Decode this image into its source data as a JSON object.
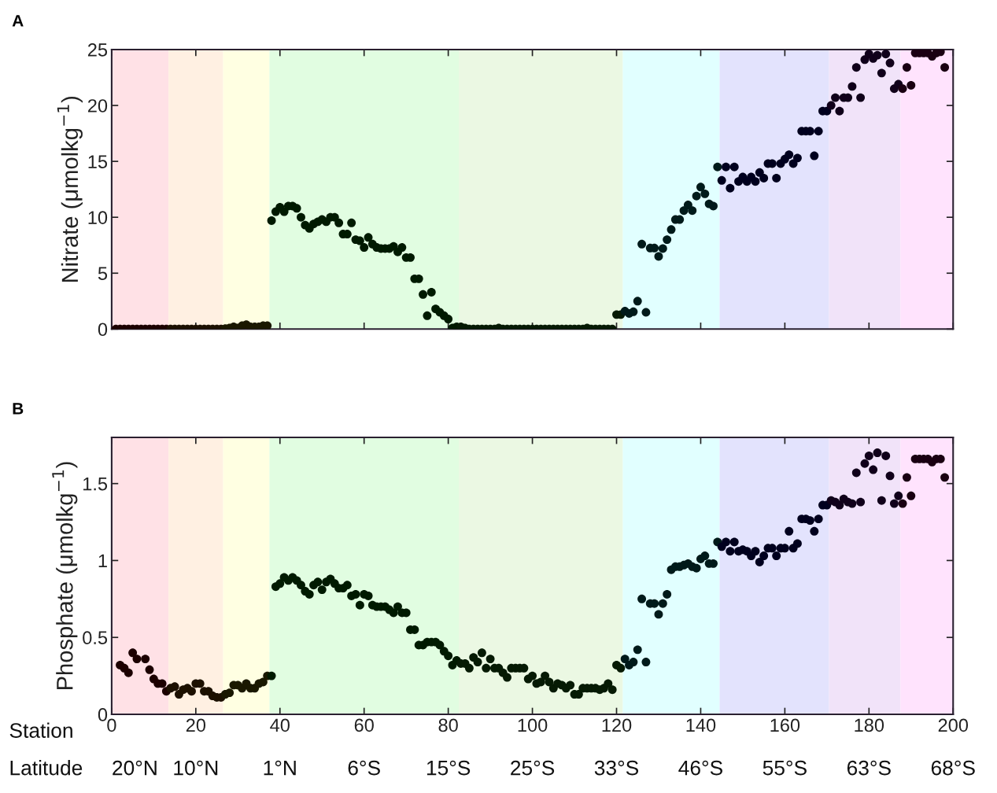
{
  "chart_data": [
    {
      "type": "scatter",
      "title": "A",
      "ylabel": "Nitrate (μmolkg$^{−1}$)",
      "xlim": [
        0,
        200
      ],
      "xticks": [
        0,
        20,
        40,
        60,
        80,
        100,
        120,
        140,
        160,
        180,
        200
      ],
      "ylim": [
        0,
        25
      ],
      "yticks": [
        0,
        5,
        10,
        15,
        20,
        25
      ],
      "tick_labels": "y",
      "grid": false,
      "legend": false,
      "marker": "circle",
      "bands": [
        {
          "axis": "x",
          "from": 0,
          "to": 13.5,
          "color": "#ffe1e6"
        },
        {
          "axis": "x",
          "from": 13.5,
          "to": 26.5,
          "color": "#fff0e2"
        },
        {
          "axis": "x",
          "from": 26.5,
          "to": 37.5,
          "color": "#ffffe2"
        },
        {
          "axis": "x",
          "from": 37.5,
          "to": 82.5,
          "color": "#e1fde1"
        },
        {
          "axis": "x",
          "from": 82.5,
          "to": 121.5,
          "color": "#ebf8e3"
        },
        {
          "axis": "x",
          "from": 121.5,
          "to": 144.5,
          "color": "#e1ffff"
        },
        {
          "axis": "x",
          "from": 144.5,
          "to": 170.5,
          "color": "#e3e3fd"
        },
        {
          "axis": "x",
          "from": 170.5,
          "to": 187.5,
          "color": "#f1e3f9"
        },
        {
          "axis": "x",
          "from": 187.5,
          "to": 200,
          "color": "#ffe3fd"
        }
      ],
      "series": [
        {
          "color": "#1c0000",
          "x": [
            1,
            2,
            3,
            4,
            5,
            6,
            7,
            8,
            9,
            10,
            11,
            12,
            13
          ],
          "values": [
            0,
            0,
            0,
            0,
            0,
            0,
            0,
            0,
            0,
            0,
            0,
            0,
            0
          ]
        },
        {
          "color": "#1c1000",
          "x": [
            14,
            15,
            16,
            17,
            18,
            19,
            20,
            21,
            22,
            23,
            24,
            25,
            26
          ],
          "values": [
            0,
            0,
            0,
            0,
            0,
            0,
            0,
            0,
            0,
            0,
            0,
            0,
            0
          ]
        },
        {
          "color": "#1a1800",
          "x": [
            27,
            28,
            29,
            30,
            31,
            32,
            33,
            34,
            35,
            36,
            37
          ],
          "values": [
            0.05,
            0.1,
            0.2,
            0.1,
            0.3,
            0.4,
            0.2,
            0.2,
            0.2,
            0.3,
            0.3
          ]
        },
        {
          "color": "#001a00",
          "x": [
            38,
            39,
            40,
            41,
            42,
            43,
            44,
            45,
            46,
            47,
            48,
            49,
            50,
            51,
            52,
            53,
            54,
            55,
            56,
            57,
            58,
            59,
            60,
            61,
            62,
            63,
            64,
            65,
            66,
            67,
            68,
            69,
            70,
            71,
            72,
            73,
            74,
            75,
            76,
            77,
            78,
            79,
            80,
            81,
            82
          ],
          "values": [
            9.7,
            10.5,
            10.9,
            10.5,
            11.0,
            11.0,
            10.8,
            10.0,
            9.3,
            9.0,
            9.4,
            9.6,
            9.8,
            9.6,
            10.0,
            10.0,
            9.5,
            8.5,
            8.5,
            9.5,
            8.0,
            7.9,
            7.3,
            8.2,
            7.6,
            7.3,
            7.2,
            7.2,
            7.2,
            7.4,
            6.9,
            7.3,
            6.4,
            6.4,
            4.5,
            4.5,
            3.1,
            1.2,
            3.3,
            1.8,
            1.5,
            1.2,
            0.9,
            0.1,
            0.2
          ]
        },
        {
          "color": "#061a04",
          "x": [
            83,
            84,
            85,
            86,
            87,
            88,
            89,
            90,
            91,
            92,
            93,
            94,
            95,
            96,
            97,
            98,
            99,
            100,
            101,
            102,
            103,
            104,
            105,
            106,
            107,
            108,
            109,
            110,
            111,
            112,
            113,
            114,
            115,
            116,
            117,
            118,
            119,
            120,
            121
          ],
          "values": [
            0.2,
            0.1,
            0,
            0,
            0,
            0,
            0,
            0,
            0,
            0.1,
            0,
            0,
            0,
            0,
            0,
            0,
            0,
            0,
            0,
            0,
            0,
            0,
            0,
            0,
            0,
            0,
            0,
            0,
            0,
            0,
            0.1,
            0,
            0,
            0,
            0,
            0,
            0,
            1.3,
            1.3
          ]
        },
        {
          "color": "#001a1a",
          "x": [
            122,
            123,
            124,
            125,
            126,
            127,
            128,
            129,
            130,
            131,
            132,
            133,
            134,
            135,
            136,
            137,
            138,
            139,
            140,
            141,
            142,
            143,
            144
          ],
          "values": [
            1.6,
            1.4,
            1.55,
            2.5,
            7.6,
            1.5,
            7.25,
            7.25,
            6.5,
            7.2,
            8.0,
            8.9,
            9.8,
            9.8,
            10.6,
            11.1,
            10.6,
            11.9,
            12.7,
            12.1,
            11.2,
            11.0,
            14.5
          ]
        },
        {
          "color": "#00001e",
          "x": [
            145,
            146,
            147,
            148,
            149,
            150,
            151,
            152,
            153,
            154,
            155,
            156,
            157,
            158,
            159,
            160,
            161,
            162,
            163,
            164,
            165,
            166,
            167,
            168,
            169,
            170
          ],
          "values": [
            13.3,
            14.5,
            12.6,
            14.5,
            13.2,
            13.6,
            13.2,
            13.6,
            13.2,
            14.0,
            13.5,
            14.8,
            14.8,
            13.5,
            14.8,
            15.2,
            15.6,
            14.8,
            15.3,
            17.7,
            17.7,
            17.7,
            15.5,
            17.7,
            19.5,
            19.5
          ]
        },
        {
          "color": "#10001a",
          "x": [
            171,
            172,
            173,
            174,
            175,
            176,
            177,
            178,
            179,
            180,
            181,
            182,
            183,
            184,
            185,
            186,
            187
          ],
          "values": [
            20.0,
            20.7,
            19.5,
            20.7,
            20.7,
            21.7,
            23.4,
            20.7,
            24.1,
            24.6,
            24.2,
            24.5,
            22.9,
            24.6,
            23.8,
            21.5,
            21.9
          ]
        },
        {
          "color": "#1a0012",
          "x": [
            188,
            189,
            190,
            191,
            192,
            193,
            194,
            195,
            196,
            197,
            198
          ],
          "values": [
            21.5,
            23.4,
            21.8,
            24.7,
            24.7,
            24.7,
            24.7,
            24.4,
            24.7,
            24.8,
            23.4
          ]
        }
      ]
    },
    {
      "type": "scatter",
      "title": "B",
      "ylabel": "Phosphate (μmolkg$^{−1}$)",
      "xlabel": "Station",
      "xlim": [
        0,
        200
      ],
      "xticks": [
        0,
        20,
        40,
        60,
        80,
        100,
        120,
        140,
        160,
        180,
        200
      ],
      "annotations": [
        "Latitude",
        "20°N",
        "10°N",
        "1°N",
        "6°S",
        "15°S",
        "25°S",
        "33°S",
        "46°S",
        "55°S",
        "63°S",
        "68°S"
      ],
      "ylim": [
        0,
        1.8
      ],
      "yticks": [
        0,
        0.5,
        1,
        1.5
      ],
      "grid": false,
      "legend": false,
      "marker": "circle",
      "bands": [
        {
          "axis": "x",
          "from": 0,
          "to": 13.5,
          "color": "#ffe1e6"
        },
        {
          "axis": "x",
          "from": 13.5,
          "to": 26.5,
          "color": "#fff0e2"
        },
        {
          "axis": "x",
          "from": 26.5,
          "to": 37.5,
          "color": "#ffffe2"
        },
        {
          "axis": "x",
          "from": 37.5,
          "to": 82.5,
          "color": "#e1fde1"
        },
        {
          "axis": "x",
          "from": 82.5,
          "to": 121.5,
          "color": "#ebf8e3"
        },
        {
          "axis": "x",
          "from": 121.5,
          "to": 144.5,
          "color": "#e1ffff"
        },
        {
          "axis": "x",
          "from": 144.5,
          "to": 170.5,
          "color": "#e3e3fd"
        },
        {
          "axis": "x",
          "from": 170.5,
          "to": 187.5,
          "color": "#f1e3f9"
        },
        {
          "axis": "x",
          "from": 187.5,
          "to": 200,
          "color": "#ffe3fd"
        }
      ],
      "series": [
        {
          "color": "#1c0000",
          "x": [
            2,
            3,
            4,
            5,
            6,
            8,
            9,
            10,
            11,
            12,
            13
          ],
          "values": [
            0.32,
            0.3,
            0.27,
            0.4,
            0.36,
            0.36,
            0.29,
            0.23,
            0.2,
            0.2,
            0.15
          ]
        },
        {
          "color": "#1c1000",
          "x": [
            14,
            15,
            16,
            17,
            18,
            19,
            20,
            21,
            22,
            23,
            24,
            25,
            26
          ],
          "values": [
            0.17,
            0.18,
            0.13,
            0.16,
            0.17,
            0.15,
            0.2,
            0.2,
            0.15,
            0.15,
            0.12,
            0.11,
            0.11
          ]
        },
        {
          "color": "#1a1800",
          "x": [
            27,
            28,
            29,
            30,
            31,
            32,
            33,
            34,
            35,
            36,
            37
          ],
          "values": [
            0.13,
            0.14,
            0.19,
            0.19,
            0.17,
            0.2,
            0.17,
            0.17,
            0.2,
            0.21,
            0.25
          ]
        },
        {
          "color": "#001a00",
          "x": [
            38,
            39,
            40,
            41,
            42,
            43,
            44,
            45,
            46,
            47,
            48,
            49,
            50,
            51,
            52,
            53,
            54,
            55,
            56,
            57,
            58,
            59,
            60,
            61,
            62,
            63,
            64,
            65,
            66,
            67,
            68,
            69,
            70,
            71,
            72,
            73,
            74,
            75,
            76,
            77,
            78,
            79,
            80,
            81,
            82
          ],
          "values": [
            0.25,
            0.83,
            0.85,
            0.89,
            0.87,
            0.89,
            0.87,
            0.84,
            0.8,
            0.78,
            0.84,
            0.86,
            0.81,
            0.86,
            0.88,
            0.85,
            0.82,
            0.82,
            0.84,
            0.77,
            0.78,
            0.71,
            0.78,
            0.77,
            0.71,
            0.7,
            0.7,
            0.7,
            0.68,
            0.66,
            0.7,
            0.66,
            0.66,
            0.55,
            0.55,
            0.45,
            0.45,
            0.47,
            0.47,
            0.47,
            0.45,
            0.41,
            0.38,
            0.32,
            0.35
          ]
        },
        {
          "color": "#061a04",
          "x": [
            83,
            84,
            85,
            86,
            87,
            88,
            89,
            90,
            91,
            92,
            93,
            94,
            95,
            96,
            97,
            98,
            99,
            100,
            101,
            102,
            103,
            104,
            105,
            106,
            107,
            108,
            109,
            110,
            111,
            112,
            113,
            114,
            115,
            116,
            117,
            118,
            119,
            120,
            121
          ],
          "values": [
            0.33,
            0.33,
            0.3,
            0.37,
            0.34,
            0.4,
            0.3,
            0.36,
            0.3,
            0.3,
            0.27,
            0.24,
            0.3,
            0.3,
            0.3,
            0.3,
            0.23,
            0.25,
            0.2,
            0.21,
            0.25,
            0.21,
            0.17,
            0.2,
            0.19,
            0.17,
            0.19,
            0.13,
            0.13,
            0.17,
            0.17,
            0.17,
            0.17,
            0.16,
            0.17,
            0.2,
            0.16,
            0.32,
            0.3
          ]
        },
        {
          "color": "#001a1a",
          "x": [
            122,
            123,
            124,
            125,
            126,
            127,
            128,
            129,
            130,
            131,
            132,
            133,
            134,
            135,
            136,
            137,
            138,
            139,
            140,
            141,
            142,
            143,
            144
          ],
          "values": [
            0.36,
            0.32,
            0.34,
            0.42,
            0.75,
            0.34,
            0.72,
            0.72,
            0.65,
            0.72,
            0.78,
            0.94,
            0.96,
            0.96,
            0.97,
            0.98,
            0.96,
            0.95,
            1.01,
            1.03,
            0.98,
            0.98,
            1.12
          ]
        },
        {
          "color": "#00001e",
          "x": [
            145,
            146,
            147,
            148,
            149,
            150,
            151,
            152,
            153,
            154,
            155,
            156,
            157,
            158,
            159,
            160,
            161,
            162,
            163,
            164,
            165,
            166,
            167,
            168,
            169,
            170
          ],
          "values": [
            1.09,
            1.12,
            1.06,
            1.12,
            1.06,
            1.07,
            1.06,
            1.03,
            1.06,
            0.99,
            1.03,
            1.08,
            1.08,
            1.03,
            1.08,
            1.08,
            1.19,
            1.08,
            1.11,
            1.27,
            1.27,
            1.26,
            1.19,
            1.27,
            1.36,
            1.36
          ]
        },
        {
          "color": "#10001a",
          "x": [
            171,
            172,
            173,
            174,
            175,
            176,
            177,
            178,
            179,
            180,
            181,
            182,
            183,
            184,
            185,
            186,
            187
          ],
          "values": [
            1.39,
            1.38,
            1.36,
            1.4,
            1.38,
            1.37,
            1.57,
            1.38,
            1.63,
            1.68,
            1.59,
            1.7,
            1.39,
            1.68,
            1.55,
            1.37,
            1.42
          ]
        },
        {
          "color": "#1a0012",
          "x": [
            188,
            189,
            190,
            191,
            192,
            193,
            194,
            195,
            196,
            197,
            198
          ],
          "values": [
            1.37,
            1.54,
            1.42,
            1.66,
            1.66,
            1.66,
            1.66,
            1.64,
            1.66,
            1.66,
            1.54
          ]
        }
      ]
    }
  ]
}
